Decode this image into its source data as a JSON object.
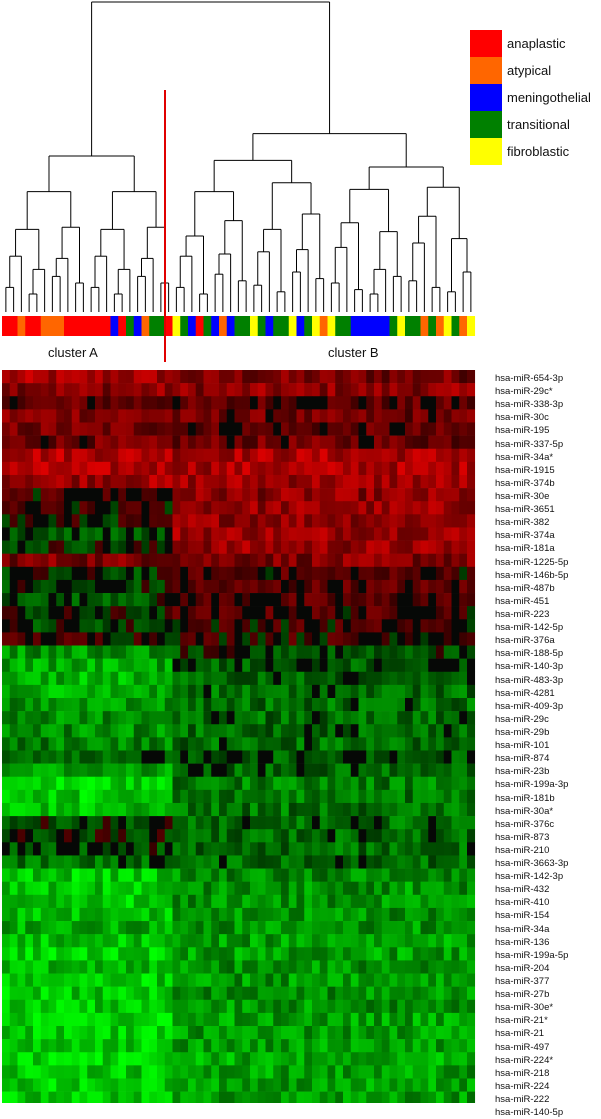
{
  "chart_data": {
    "type": "heatmap",
    "title": "",
    "xlabel": "",
    "ylabel": "",
    "legend": {
      "placement": "top-right",
      "entries": [
        {
          "name": "anaplastic",
          "color": "#ff0000"
        },
        {
          "name": "atypical",
          "color": "#ff6600"
        },
        {
          "name": "meningothelial",
          "color": "#0000ff"
        },
        {
          "name": "transitional",
          "color": "#008000"
        },
        {
          "name": "fibroblastic",
          "color": "#ffff00"
        }
      ]
    },
    "clusters": [
      {
        "name": "cluster A",
        "first_sample": 1,
        "last_sample": 22
      },
      {
        "name": "cluster B",
        "first_sample": 23,
        "last_sample": 61
      }
    ],
    "color_scale": {
      "low": "#00ff00",
      "mid": "#000000",
      "high": "#ff0000"
    },
    "samples": {
      "count": 61,
      "classes": [
        "anaplastic",
        "anaplastic",
        "atypical",
        "anaplastic",
        "anaplastic",
        "atypical",
        "atypical",
        "atypical",
        "anaplastic",
        "anaplastic",
        "anaplastic",
        "anaplastic",
        "anaplastic",
        "anaplastic",
        "meningothelial",
        "anaplastic",
        "transitional",
        "meningothelial",
        "atypical",
        "transitional",
        "transitional",
        "anaplastic",
        "fibroblastic",
        "transitional",
        "meningothelial",
        "anaplastic",
        "transitional",
        "meningothelial",
        "atypical",
        "meningothelial",
        "transitional",
        "transitional",
        "fibroblastic",
        "transitional",
        "meningothelial",
        "transitional",
        "transitional",
        "fibroblastic",
        "meningothelial",
        "transitional",
        "fibroblastic",
        "atypical",
        "fibroblastic",
        "transitional",
        "transitional",
        "meningothelial",
        "meningothelial",
        "meningothelial",
        "meningothelial",
        "meningothelial",
        "transitional",
        "fibroblastic",
        "transitional",
        "transitional",
        "atypical",
        "transitional",
        "atypical",
        "fibroblastic",
        "transitional",
        "atypical",
        "fibroblastic"
      ]
    },
    "rows": [
      {
        "label": "hsa-miR-654-3p",
        "a": 0.55,
        "b": 0.35
      },
      {
        "label": "hsa-miR-29c*",
        "a": 0.45,
        "b": 0.45
      },
      {
        "label": "hsa-miR-338-3p",
        "a": 0.25,
        "b": 0.2
      },
      {
        "label": "hsa-miR-30c",
        "a": 0.45,
        "b": 0.3
      },
      {
        "label": "hsa-miR-195",
        "a": 0.35,
        "b": 0.2
      },
      {
        "label": "hsa-miR-337-5p",
        "a": 0.3,
        "b": 0.3
      },
      {
        "label": "hsa-miR-34a*",
        "a": 0.65,
        "b": 0.6
      },
      {
        "label": "hsa-miR-1915",
        "a": 0.6,
        "b": 0.6
      },
      {
        "label": "hsa-miR-374b",
        "a": 0.55,
        "b": 0.55
      },
      {
        "label": "hsa-miR-30e",
        "a": 0.1,
        "b": 0.45
      },
      {
        "label": "hsa-miR-3651",
        "a": 0.05,
        "b": 0.5
      },
      {
        "label": "hsa-miR-382",
        "a": 0.0,
        "b": 0.5
      },
      {
        "label": "hsa-miR-374a",
        "a": -0.15,
        "b": 0.55
      },
      {
        "label": "hsa-miR-181a",
        "a": -0.05,
        "b": 0.5
      },
      {
        "label": "hsa-miR-1225-5p",
        "a": 0.4,
        "b": 0.4
      },
      {
        "label": "hsa-miR-146b-5p",
        "a": -0.1,
        "b": 0.15
      },
      {
        "label": "hsa-miR-487b",
        "a": -0.1,
        "b": 0.2
      },
      {
        "label": "hsa-miR-451",
        "a": -0.15,
        "b": 0.15
      },
      {
        "label": "hsa-miR-223",
        "a": -0.05,
        "b": 0.15
      },
      {
        "label": "hsa-miR-142-5p",
        "a": -0.1,
        "b": 0.1
      },
      {
        "label": "hsa-miR-376a",
        "a": 0.1,
        "b": 0.1
      },
      {
        "label": "hsa-miR-188-5p",
        "a": -0.5,
        "b": -0.15
      },
      {
        "label": "hsa-miR-140-3p",
        "a": -0.6,
        "b": -0.2
      },
      {
        "label": "hsa-miR-483-3p",
        "a": -0.65,
        "b": -0.25
      },
      {
        "label": "hsa-miR-4281",
        "a": -0.6,
        "b": -0.3
      },
      {
        "label": "hsa-miR-409-3p",
        "a": -0.5,
        "b": -0.3
      },
      {
        "label": "hsa-miR-29c",
        "a": -0.5,
        "b": -0.3
      },
      {
        "label": "hsa-miR-29b",
        "a": -0.45,
        "b": -0.3
      },
      {
        "label": "hsa-miR-101",
        "a": -0.4,
        "b": -0.3
      },
      {
        "label": "hsa-miR-874",
        "a": -0.2,
        "b": -0.2
      },
      {
        "label": "hsa-miR-23b",
        "a": -0.55,
        "b": -0.25
      },
      {
        "label": "hsa-miR-199a-3p",
        "a": -0.8,
        "b": -0.4
      },
      {
        "label": "hsa-miR-181b",
        "a": -0.75,
        "b": -0.35
      },
      {
        "label": "hsa-miR-30a*",
        "a": -0.7,
        "b": -0.35
      },
      {
        "label": "hsa-miR-376c",
        "a": -0.1,
        "b": -0.3
      },
      {
        "label": "hsa-miR-873",
        "a": -0.05,
        "b": -0.3
      },
      {
        "label": "hsa-miR-210",
        "a": -0.15,
        "b": -0.3
      },
      {
        "label": "hsa-miR-3663-3p",
        "a": -0.3,
        "b": -0.3
      },
      {
        "label": "hsa-miR-142-3p",
        "a": -0.75,
        "b": -0.45
      },
      {
        "label": "hsa-miR-432",
        "a": -0.75,
        "b": -0.5
      },
      {
        "label": "hsa-miR-410",
        "a": -0.75,
        "b": -0.5
      },
      {
        "label": "hsa-miR-154",
        "a": -0.7,
        "b": -0.5
      },
      {
        "label": "hsa-miR-34a",
        "a": -0.6,
        "b": -0.5
      },
      {
        "label": "hsa-miR-136",
        "a": -0.7,
        "b": -0.55
      },
      {
        "label": "hsa-miR-199a-5p",
        "a": -0.8,
        "b": -0.55
      },
      {
        "label": "hsa-miR-204",
        "a": -0.7,
        "b": -0.5
      },
      {
        "label": "hsa-miR-377",
        "a": -0.75,
        "b": -0.5
      },
      {
        "label": "hsa-miR-27b",
        "a": -0.75,
        "b": -0.5
      },
      {
        "label": "hsa-miR-30e*",
        "a": -0.75,
        "b": -0.5
      },
      {
        "label": "hsa-miR-21*",
        "a": -0.8,
        "b": -0.55
      },
      {
        "label": "hsa-miR-21",
        "a": -0.75,
        "b": -0.55
      },
      {
        "label": "hsa-miR-497",
        "a": -0.75,
        "b": -0.55
      },
      {
        "label": "hsa-miR-224*",
        "a": -0.8,
        "b": -0.6
      },
      {
        "label": "hsa-miR-218",
        "a": -0.75,
        "b": -0.55
      },
      {
        "label": "hsa-miR-224",
        "a": -0.75,
        "b": -0.55
      },
      {
        "label": "hsa-miR-222",
        "a": -0.75,
        "b": -0.55
      },
      {
        "label": "hsa-miR-140-5p",
        "a": -0.75,
        "b": -0.55
      }
    ]
  }
}
